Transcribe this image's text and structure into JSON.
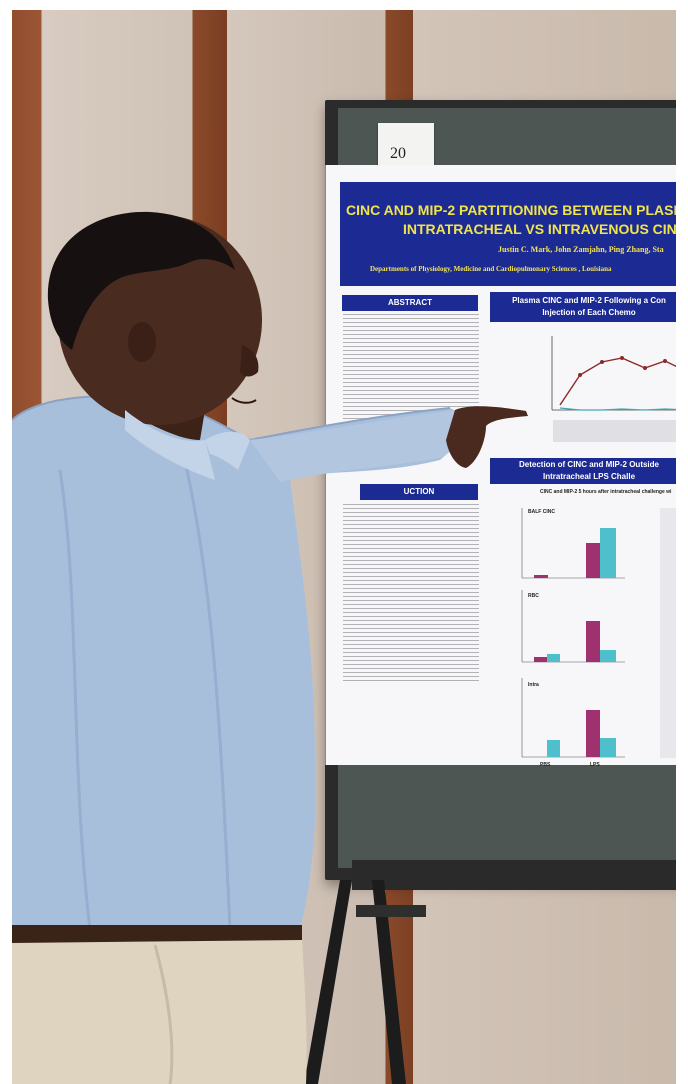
{
  "poster": {
    "number_card": "20",
    "title_line1": "CINC AND MIP-2 PARTITIONING BETWEEN PLASM",
    "title_line2": "INTRATRACHEAL VS INTRAVENOUS CIN",
    "authors_line1": "Justin C. Mark, John Zamjahn, Ping Zhang, Sta",
    "authors_line2": "Departments of Physiology, Medicine and Cardiopulmonary Sciences , Louisiana",
    "abstract_heading": "ABSTRACT",
    "plasma_heading_line1": "Plasma CINC and MIP-2 Following a Con",
    "plasma_heading_line2": "Injection of Each Chemo",
    "detection_heading_line1": "Detection of CINC and MIP-2 Outside",
    "detection_heading_line2": "Intratracheal LPS Challe",
    "intro_heading": "UCTION",
    "bar_subtitle": "CINC and MIP-2 5 hours after intratracheal challenge wi",
    "panel_balf": "BALF CINC",
    "panel_rbc": "RBC",
    "panel_intra": "Intra",
    "x_pbs": "PBS",
    "x_lps": "LPS"
  },
  "colors": {
    "poster_blue": "#1c2b93",
    "title_yellow": "#f1e44b",
    "bar_magenta": "#a0316f",
    "bar_teal": "#4fbfcc",
    "shirt_blue": "#a8bfdc"
  }
}
